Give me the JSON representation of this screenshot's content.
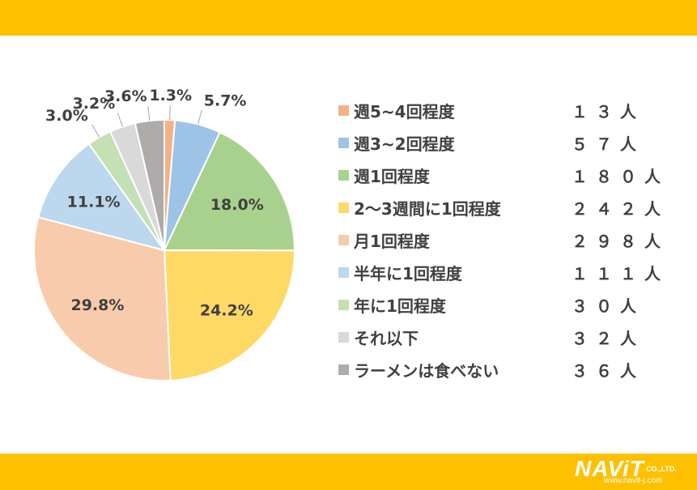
{
  "chart_data": {
    "type": "pie",
    "categories": [
      "週5~4回程度",
      "週3~2回程度",
      "週1回程度",
      "2〜3週間に1回程度",
      "月1回程度",
      "半年に1回程度",
      "年に1回程度",
      "それ以下",
      "ラーメンは食べない"
    ],
    "values": [
      1.3,
      5.7,
      18.0,
      24.2,
      29.8,
      11.1,
      3.0,
      3.2,
      3.6
    ],
    "value_labels": [
      "1.3%",
      "5.7%",
      "18.0%",
      "24.2%",
      "29.8%",
      "11.1%",
      "3.0%",
      "3.2%",
      "3.6%"
    ],
    "counts": [
      "１３人",
      "５７人",
      "１８０人",
      "２４２人",
      "２９８人",
      "１１１人",
      "３０人",
      "３２人",
      "３６人"
    ],
    "colors": [
      "#F4B183",
      "#9DC3E6",
      "#A9D18E",
      "#FFD966",
      "#F8CBAD",
      "#BDD7EE",
      "#C5E0B4",
      "#D9D9D9",
      "#AFABAB"
    ],
    "label_placement": [
      "outside",
      "outside",
      "inside",
      "inside",
      "inside",
      "inside",
      "outside",
      "outside",
      "outside"
    ],
    "start": "12 o'clock, clockwise",
    "legend_position": "right"
  },
  "logo": {
    "wordmark": "NAViT",
    "company_suffix": "CO.,LTD.",
    "url": "www.navit-j.com"
  },
  "colors": {
    "band": "#FFC000",
    "text": "#404040",
    "slice_border": "#ffffff"
  }
}
